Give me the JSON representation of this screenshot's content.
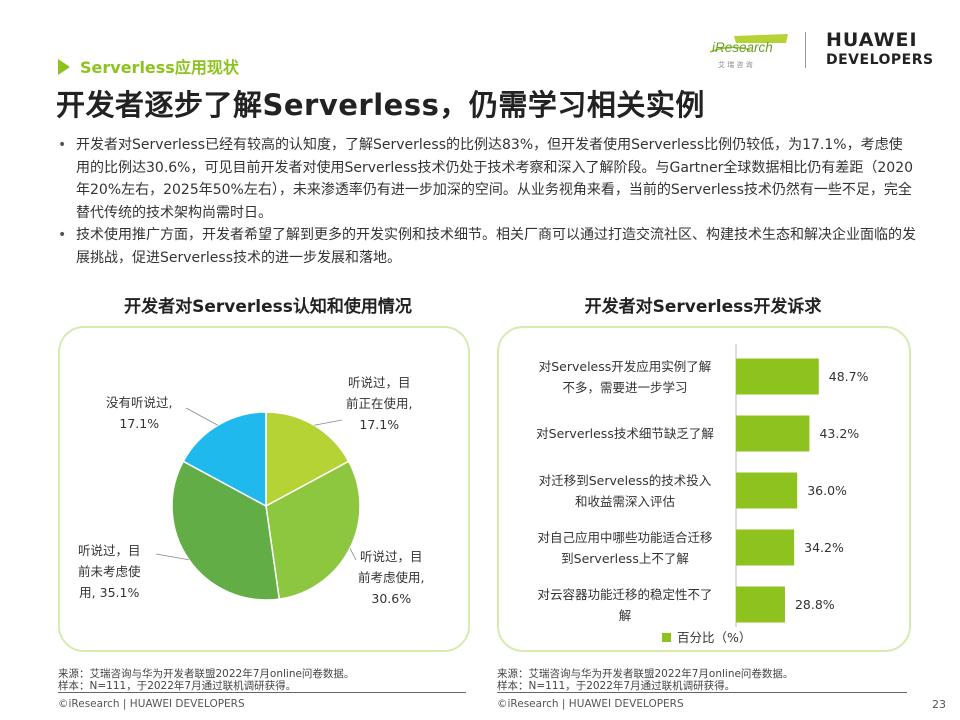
{
  "section_tag": "Serverless应用现状",
  "title": "开发者逐步了解Serverless，仍需学习相关实例",
  "logos": {
    "iresearch": "iResearch",
    "iresearch_sub": "艾 瑞 咨 询",
    "huawei_line1": "HUAWEI",
    "huawei_line2": "DEVELOPERS"
  },
  "bullets": [
    "开发者对Serverless已经有较高的认知度，了解Serverless的比例达83%，但开发者使用Serverless比例仍较低，为17.1%，考虑使用的比例达30.6%，可见目前开发者对使用Serverless技术仍处于技术考察和深入了解阶段。与Gartner全球数据相比仍有差距（2020年20%左右，2025年50%左右），未来渗透率仍有进一步加深的空间。从业务视角来看，当前的Serverless技术仍然有一些不足，完全替代传统的技术架构尚需时日。",
    "技术使用推广方面，开发者希望了解到更多的开发实例和技术细节。相关厂商可以通过打造交流社区、构建技术生态和解决企业面临的发展挑战，促进Serverless技术的进一步发展和落地。"
  ],
  "chart_data": [
    {
      "type": "pie",
      "title": "开发者对Serverless认知和使用情况",
      "slices": [
        {
          "label": [
            "听说过，目",
            "前正在使用,",
            "17.1%"
          ],
          "value": 17.1,
          "color": "#b5d334"
        },
        {
          "label": [
            "听说过，目",
            "前考虑使用,",
            "30.6%"
          ],
          "value": 30.6,
          "color": "#8dc63f"
        },
        {
          "label": [
            "听说过，目",
            "前未考虑使",
            "用, 35.1%"
          ],
          "value": 35.1,
          "color": "#62ad46"
        },
        {
          "label": [
            "没有听说过,",
            "17.1%"
          ],
          "value": 17.1,
          "color": "#1fb9ed"
        }
      ]
    },
    {
      "type": "bar",
      "orientation": "horizontal",
      "title": "开发者对Serverless开发诉求",
      "categories": [
        [
          "对Serveless开发应用实例了解",
          "不多，需要进一步学习"
        ],
        [
          "对Serverless技术细节缺乏了解"
        ],
        [
          "对迁移到Serveless的技术投入",
          "和收益需深入评估"
        ],
        [
          "对自己应用中哪些功能适合迁移",
          "到Serverless上不了解"
        ],
        [
          "对云容器功能迁移的稳定性不了",
          "解"
        ]
      ],
      "values": [
        48.7,
        43.2,
        36.0,
        34.2,
        28.8
      ],
      "value_labels": [
        "48.7%",
        "43.2%",
        "36.0%",
        "34.2%",
        "28.8%"
      ],
      "series": [
        {
          "name": "百分比（%）",
          "color": "#8dc21f"
        }
      ],
      "legend": "bottom"
    }
  ],
  "sources": {
    "left": [
      "来源：艾瑞咨询与华为开发者联盟2022年7月online问卷数据。",
      "样本：N=111，于2022年7月通过联机调研获得。"
    ],
    "right": [
      "来源：艾瑞咨询与华为开发者联盟2022年7月online问卷数据。",
      "样本：N=111，于2022年7月通过联机调研获得。"
    ]
  },
  "footer": {
    "left": "©iResearch | HUAWEI DEVELOPERS",
    "right": "©iResearch | HUAWEI DEVELOPERS",
    "page": "23"
  }
}
